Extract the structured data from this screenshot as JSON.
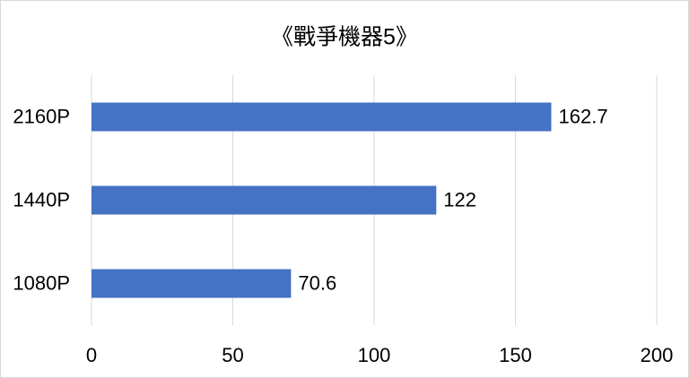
{
  "chart_data": {
    "type": "bar",
    "orientation": "horizontal",
    "title": "《戰爭機器5》",
    "categories": [
      "2160P",
      "1440P",
      "1080P"
    ],
    "values": [
      162.7,
      122,
      70.6
    ],
    "color": "#4472c4",
    "xlim": [
      0,
      200
    ],
    "xticks": [
      0,
      50,
      100,
      150,
      200
    ],
    "grid": true
  }
}
